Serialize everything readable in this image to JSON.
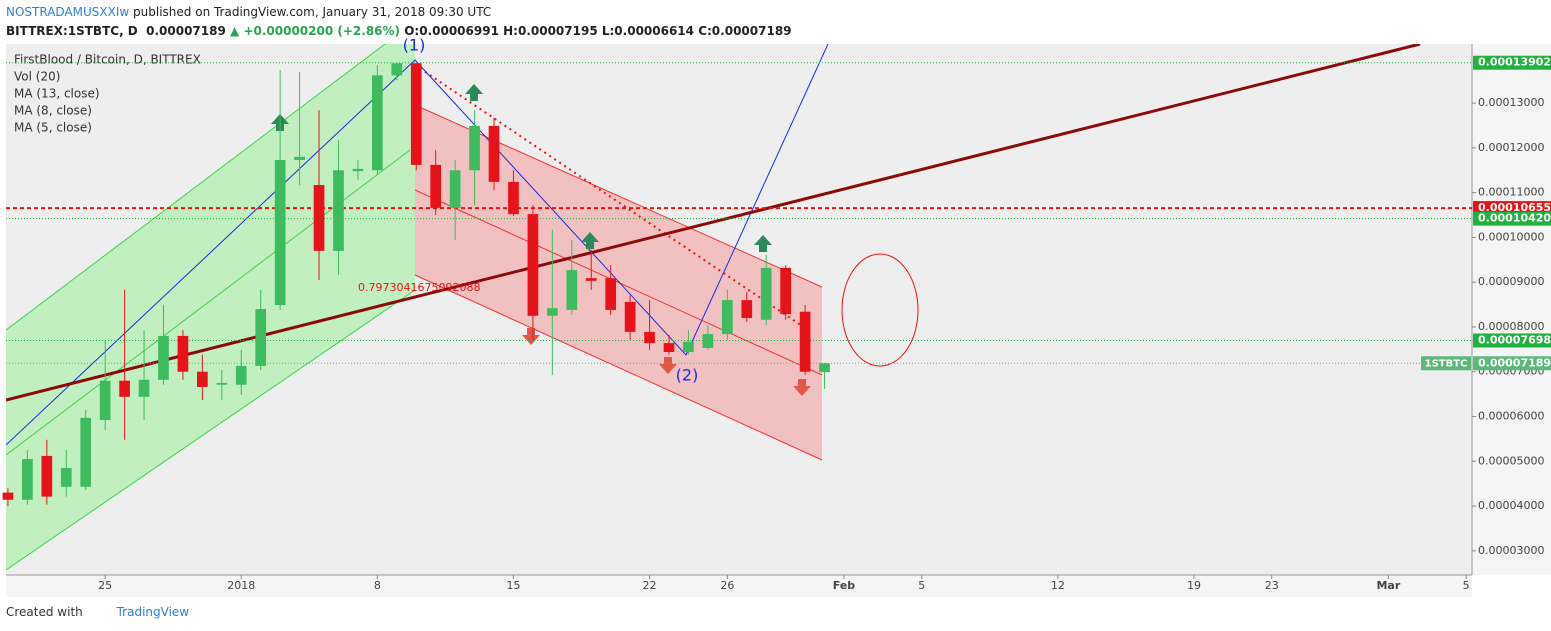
{
  "header": {
    "author": "NOSTRADAMUSXXIw",
    "published": "published on TradingView.com, January 31, 2018 09:30 UTC",
    "symbol": "BITTREX:1STBTC, D",
    "price": "0.00007189",
    "change": "▲ +0.00000200 (+2.86%)",
    "open": "O:0.00006991",
    "high": "H:0.00007195",
    "low": "L:0.00006614",
    "close": "C:0.00007189"
  },
  "footer": {
    "text": "Created with",
    "brand": "TradingView"
  },
  "chart_data": {
    "type": "candlestick",
    "title": "FirstBlood / Bitcoin, D, BITTREX",
    "legend": [
      "Vol (20)",
      "MA (13, close)",
      "MA (8, close)",
      "MA (5, close)"
    ],
    "up_color": "#3dbb5e",
    "down_color": "#e8121b",
    "x": [
      0,
      1,
      2,
      3,
      4,
      5,
      6,
      7,
      8,
      9,
      10,
      11,
      12,
      13,
      14,
      15,
      16,
      17,
      18,
      19,
      20,
      21,
      22,
      23,
      24,
      25,
      26,
      27,
      28,
      29,
      30,
      31,
      32,
      33,
      34,
      35,
      36,
      37,
      38,
      39,
      40,
      41,
      42
    ],
    "open": [
      4.3e-05,
      4.14e-05,
      5.12e-05,
      4.43e-05,
      4.43e-05,
      5.92e-05,
      6.8e-05,
      6.44e-05,
      6.82e-05,
      7.8e-05,
      7e-05,
      6.71e-05,
      6.71e-05,
      7.13e-05,
      8.49e-05,
      0.0001173,
      0.0001117,
      9.7e-05,
      0.0001148,
      0.000115,
      0.0001362,
      0.0001389,
      0.0001162,
      0.0001066,
      0.000115,
      0.0001249,
      0.0001124,
      0.0001052,
      8.25e-05,
      8.38e-05,
      9.09e-05,
      9.09e-05,
      8.56e-05,
      7.89e-05,
      7.64e-05,
      7.44e-05,
      7.53e-05,
      7.84e-05,
      8.6e-05,
      8.16e-05,
      9.32e-05,
      8.34e-05,
      6.991e-05
    ],
    "high": [
      4.4e-05,
      5.25e-05,
      5.48e-05,
      5.25e-05,
      6.15e-05,
      7.71e-05,
      8.83e-05,
      7.93e-05,
      8.49e-05,
      7.93e-05,
      7.38e-05,
      7.04e-05,
      7.49e-05,
      8.83e-05,
      0.0001374,
      0.0001369,
      0.0001284,
      0.0001217,
      0.0001173,
      0.0001385,
      0.000139,
      0.00013902,
      0.0001195,
      0.0001173,
      0.0001284,
      0.0001267,
      0.000115,
      0.0001072,
      0.0001017,
      9.94e-05,
      9.72e-05,
      9.38e-05,
      8.71e-05,
      8.6e-05,
      7.82e-05,
      7.93e-05,
      8.04e-05,
      8.83e-05,
      8.78e-05,
      9.61e-05,
      9.38e-05,
      8.49e-05,
      7.195e-05
    ],
    "low": [
      4e-05,
      4.03e-05,
      4.03e-05,
      4.21e-05,
      4.36e-05,
      5.7e-05,
      5.48e-05,
      5.92e-05,
      6.71e-05,
      6.82e-05,
      6.37e-05,
      6.37e-05,
      6.48e-05,
      7.04e-05,
      8.38e-05,
      0.0001117,
      9.05e-05,
      9.16e-05,
      0.0001128,
      0.0001139,
      0.0001351,
      0.000115,
      0.000105,
      9.94e-05,
      0.0001072,
      0.0001106,
      0.0001048,
      7.71e-05,
      6.93e-05,
      8.27e-05,
      8.83e-05,
      8.27e-05,
      7.71e-05,
      7.49e-05,
      7.38e-05,
      7.38e-05,
      7.49e-05,
      7.71e-05,
      8.11e-05,
      8.04e-05,
      8.16e-05,
      6.93e-05,
      6.614e-05
    ],
    "close": [
      4.14e-05,
      5.05e-05,
      4.21e-05,
      4.85e-05,
      5.97e-05,
      6.8e-05,
      6.44e-05,
      6.82e-05,
      7.8e-05,
      7e-05,
      6.66e-05,
      6.75e-05,
      7.13e-05,
      8.4e-05,
      0.0001173,
      0.000118,
      9.7e-05,
      0.000115,
      0.0001153,
      0.0001362,
      0.0001389,
      0.0001162,
      0.0001066,
      0.000115,
      0.0001249,
      0.0001124,
      0.0001052,
      8.25e-05,
      8.42e-05,
      9.27e-05,
      9.03e-05,
      8.38e-05,
      7.89e-05,
      7.64e-05,
      7.44e-05,
      7.67e-05,
      7.84e-05,
      8.6e-05,
      8.2e-05,
      9.32e-05,
      8.29e-05,
      7e-05,
      7.189e-05
    ],
    "xlim": [
      -0.1,
      75.3
    ],
    "xticks": [
      {
        "value": 5,
        "label": "25"
      },
      {
        "value": 12,
        "label": "2018"
      },
      {
        "value": 19,
        "label": "8"
      },
      {
        "value": 26,
        "label": "15"
      },
      {
        "value": 33,
        "label": "22"
      },
      {
        "value": 37,
        "label": "26"
      },
      {
        "value": 43,
        "label": "Feb"
      },
      {
        "value": 47,
        "label": "5"
      },
      {
        "value": 54,
        "label": "12"
      },
      {
        "value": 61,
        "label": "19"
      },
      {
        "value": 65,
        "label": "23"
      },
      {
        "value": 71,
        "label": "Mar"
      },
      {
        "value": 75,
        "label": "5"
      }
    ],
    "ylim": [
      2.46e-05,
      0.0001432
    ],
    "yticks": [
      {
        "value": 3e-05,
        "label": "0.00003000"
      },
      {
        "value": 4e-05,
        "label": "0.00004000"
      },
      {
        "value": 5e-05,
        "label": "0.00005000"
      },
      {
        "value": 6e-05,
        "label": "0.00006000"
      },
      {
        "value": 7e-05,
        "label": "0.00007000"
      },
      {
        "value": 8e-05,
        "label": "0.00008000"
      },
      {
        "value": 9e-05,
        "label": "0.00009000"
      },
      {
        "value": 0.0001,
        "label": "0.00010000"
      },
      {
        "value": 0.00011,
        "label": "0.00011000"
      },
      {
        "value": 0.00012,
        "label": "0.00012000"
      },
      {
        "value": 0.00013,
        "label": "0.00013000"
      }
    ],
    "levels": [
      {
        "value": 0.00013902,
        "color": "#1db33c"
      },
      {
        "value": 0.00010655,
        "color": "#ee1111",
        "dashed": true
      },
      {
        "value": 0.0001042,
        "label": "0.00010420",
        "color": "#1db33c"
      },
      {
        "value": 7.698e-05,
        "color": "#1db33c"
      },
      {
        "value": 7.189e-05,
        "color": "#5cb87a",
        "tag": "1STBTC"
      }
    ],
    "annotations": {
      "ratio": "0.7973041675092088",
      "wave1": "(1)",
      "wave2": "(2)"
    }
  }
}
